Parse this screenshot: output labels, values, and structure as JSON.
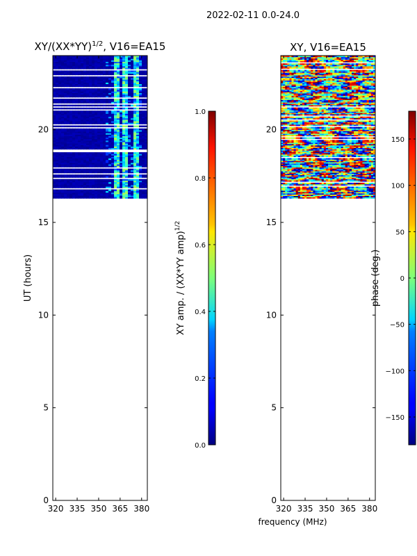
{
  "figure": {
    "suptitle": "2022-02-11 0.0-24.0",
    "xlabel": "frequency (MHz)"
  },
  "chart_data": [
    {
      "type": "heatmap",
      "title_main": "XY/(XX*YY)",
      "title_sup": "1/2",
      "title_rest": ", V16=EA15",
      "ylabel": "UT (hours)",
      "xlim": [
        318,
        384
      ],
      "ylim": [
        0,
        24
      ],
      "xticks": [
        320,
        335,
        350,
        365,
        380
      ],
      "yticks": [
        0,
        5,
        10,
        15,
        20
      ],
      "data_coverage_ut": [
        16.3,
        24.0
      ],
      "bright_freq_bands_mhz": [
        [
          361,
          364
        ],
        [
          367,
          371
        ],
        [
          374,
          378
        ]
      ],
      "colorbar": {
        "label_main": "XY amp. / (XX*YY amp)",
        "label_sup": "1/2",
        "range": [
          0.0,
          1.0
        ],
        "ticks": [
          "0.0",
          "0.2",
          "0.4",
          "0.6",
          "0.8",
          "1.0"
        ],
        "tick_values": [
          0.0,
          0.2,
          0.4,
          0.6,
          0.8,
          1.0
        ],
        "colormap": "jet"
      }
    },
    {
      "type": "heatmap",
      "title": "XY, V16=EA15",
      "xlim": [
        318,
        384
      ],
      "ylim": [
        0,
        24
      ],
      "xticks": [
        320,
        335,
        350,
        365,
        380
      ],
      "yticks": [
        0,
        5,
        10,
        15,
        20
      ],
      "data_coverage_ut": [
        16.3,
        24.0
      ],
      "colorbar": {
        "label": "phase (deg.)",
        "range": [
          -180,
          180
        ],
        "ticks": [
          "−150",
          "−100",
          "−50",
          "0",
          "50",
          "100",
          "150"
        ],
        "tick_values": [
          -150,
          -100,
          -50,
          0,
          50,
          100,
          150
        ],
        "colormap": "jet"
      }
    }
  ]
}
